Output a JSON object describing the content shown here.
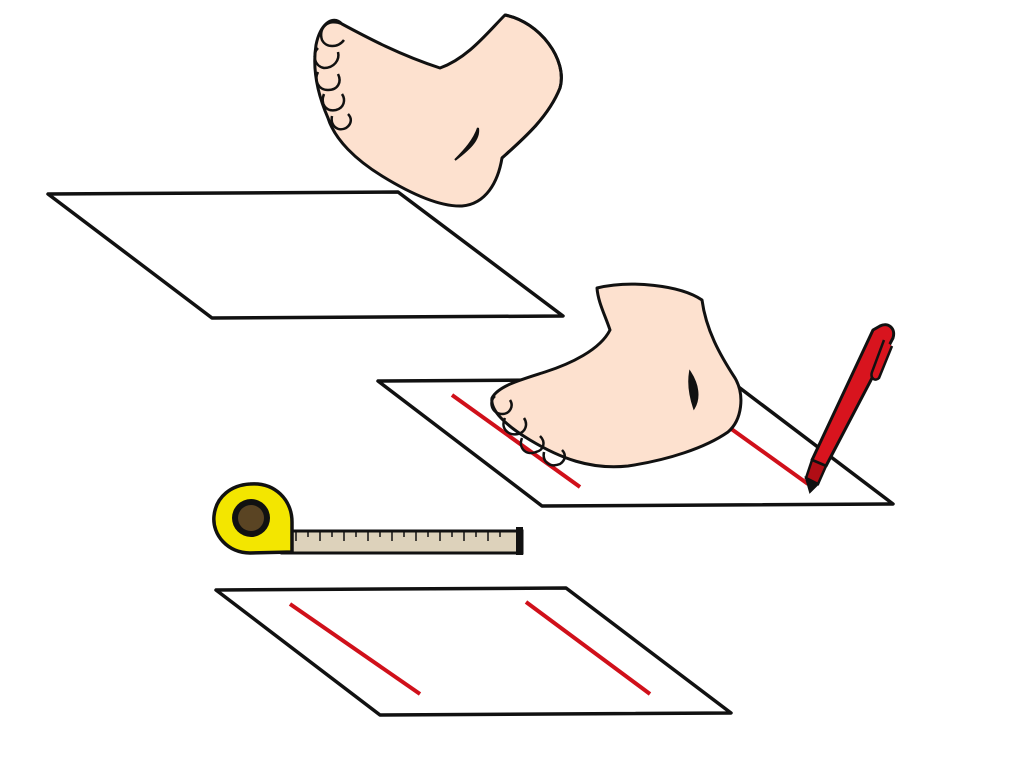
{
  "illustration": {
    "steps": [
      {
        "name": "foot-above-paper",
        "depicts": [
          "foot-icon",
          "paper-sheet-blank"
        ]
      },
      {
        "name": "foot-on-paper-marking",
        "depicts": [
          "foot-icon",
          "paper-sheet-marked",
          "pen-icon"
        ]
      },
      {
        "name": "measure-marks",
        "depicts": [
          "tape-measure-icon",
          "paper-sheet-marked"
        ]
      }
    ]
  },
  "colors": {
    "outline": "#111111",
    "skin": "#fde1cf",
    "skin_shadow": "#f2c6ad",
    "mark_red": "#d0101a",
    "pen_red": "#d8141e",
    "tape_yellow": "#f3e600",
    "tape_center": "#5a4423",
    "tape_ruler": "#ddd2bb"
  }
}
